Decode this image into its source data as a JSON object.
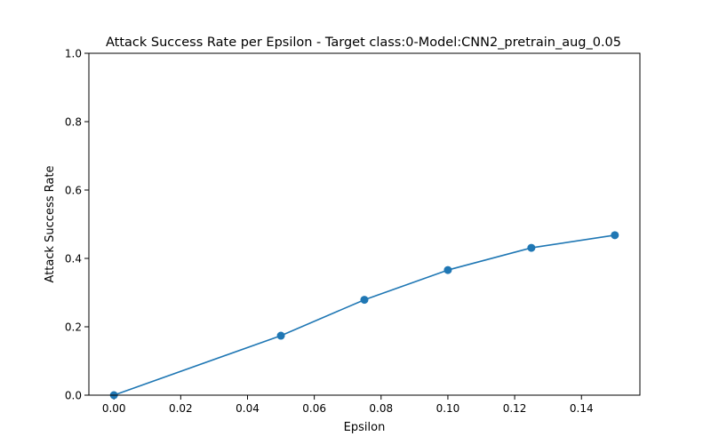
{
  "chart_data": {
    "type": "line",
    "title": "Attack Success Rate per Epsilon - Target class:0-Model:CNN2_pretrain_aug_0.05",
    "xlabel": "Epsilon",
    "ylabel": "Attack Success Rate",
    "xlim": [
      -0.0075,
      0.1575
    ],
    "ylim": [
      0,
      1.0
    ],
    "xticks": [
      "0.00",
      "0.02",
      "0.04",
      "0.06",
      "0.08",
      "0.10",
      "0.12",
      "0.14"
    ],
    "yticks": [
      "0.0",
      "0.2",
      "0.4",
      "0.6",
      "0.8",
      "1.0"
    ],
    "grid": false,
    "series": [
      {
        "color": "#1f77b4",
        "marker": "circle",
        "x": [
          0.0,
          0.05,
          0.075,
          0.1,
          0.125,
          0.15
        ],
        "y": [
          0.0,
          0.174,
          0.279,
          0.366,
          0.431,
          0.468
        ]
      }
    ]
  }
}
